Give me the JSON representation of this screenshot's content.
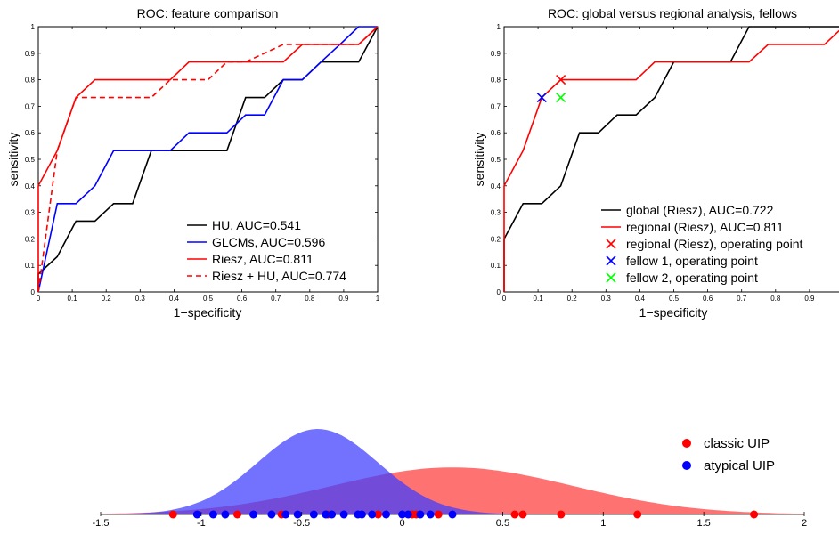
{
  "chart_data": [
    {
      "type": "line",
      "title": "ROC: feature comparison",
      "xlabel": "1−specificity",
      "ylabel": "sensitivity",
      "xlim": [
        0,
        1
      ],
      "ylim": [
        0,
        1
      ],
      "xticks": [
        "0",
        "0.1",
        "0.2",
        "0.3",
        "0.4",
        "0.5",
        "0.6",
        "0.7",
        "0.8",
        "0.9",
        "1"
      ],
      "yticks": [
        "0",
        "0.1",
        "0.2",
        "0.3",
        "0.4",
        "0.5",
        "0.6",
        "0.7",
        "0.8",
        "0.9",
        "1"
      ],
      "legend_position": "bottom-right",
      "series": [
        {
          "name": "HU, AUC=0.541",
          "color": "#000000",
          "style": "solid",
          "x": [
            0,
            0,
            0.056,
            0.111,
            0.167,
            0.222,
            0.278,
            0.333,
            0.444,
            0.556,
            0.611,
            0.667,
            0.722,
            0.778,
            0.833,
            0.889,
            0.944,
            1
          ],
          "y": [
            0,
            0.067,
            0.133,
            0.267,
            0.267,
            0.333,
            0.333,
            0.533,
            0.533,
            0.533,
            0.733,
            0.733,
            0.8,
            0.8,
            0.867,
            0.867,
            0.867,
            1
          ]
        },
        {
          "name": "GLCMs, AUC=0.596",
          "color": "#0000ff",
          "style": "solid",
          "x": [
            0,
            0.056,
            0.111,
            0.167,
            0.222,
            0.278,
            0.333,
            0.389,
            0.444,
            0.556,
            0.611,
            0.667,
            0.722,
            0.778,
            0.833,
            0.889,
            0.944,
            1
          ],
          "y": [
            0,
            0.333,
            0.333,
            0.4,
            0.533,
            0.533,
            0.533,
            0.533,
            0.6,
            0.6,
            0.667,
            0.667,
            0.8,
            0.8,
            0.867,
            0.933,
            1,
            1
          ]
        },
        {
          "name": "Riesz, AUC=0.811",
          "color": "#ff0000",
          "style": "solid",
          "x": [
            0,
            0,
            0.056,
            0.111,
            0.167,
            0.222,
            0.278,
            0.389,
            0.444,
            0.556,
            0.611,
            0.722,
            0.778,
            0.833,
            0.944,
            1
          ],
          "y": [
            0,
            0.4,
            0.533,
            0.733,
            0.8,
            0.8,
            0.8,
            0.8,
            0.867,
            0.867,
            0.867,
            0.867,
            0.933,
            0.933,
            0.933,
            1
          ]
        },
        {
          "name": "Riesz + HU, AUC=0.774",
          "color": "#ff0000",
          "style": "dashed",
          "x": [
            0,
            0.056,
            0.111,
            0.167,
            0.222,
            0.278,
            0.333,
            0.389,
            0.5,
            0.556,
            0.611,
            0.722,
            0.778,
            0.833,
            0.944,
            1
          ],
          "y": [
            0,
            0.533,
            0.733,
            0.733,
            0.733,
            0.733,
            0.733,
            0.8,
            0.8,
            0.867,
            0.867,
            0.933,
            0.933,
            0.933,
            0.933,
            1
          ]
        }
      ]
    },
    {
      "type": "line",
      "title": "ROC: global versus regional analysis, fellows",
      "xlabel": "1−specificity",
      "ylabel": "sensitivity",
      "xlim": [
        0,
        1
      ],
      "ylim": [
        0,
        1
      ],
      "xticks": [
        "0",
        "0.1",
        "0.2",
        "0.3",
        "0.4",
        "0.5",
        "0.6",
        "0.7",
        "0.8",
        "0.9"
      ],
      "yticks": [
        "0",
        "0.1",
        "0.2",
        "0.3",
        "0.4",
        "0.5",
        "0.6",
        "0.7",
        "0.8",
        "0.9",
        "1"
      ],
      "legend_position": "bottom-right",
      "series": [
        {
          "name": "global (Riesz), AUC=0.722",
          "color": "#000000",
          "style": "solid",
          "x": [
            0,
            0,
            0.056,
            0.111,
            0.167,
            0.222,
            0.278,
            0.333,
            0.389,
            0.444,
            0.5,
            0.556,
            0.611,
            0.667,
            0.722,
            0.778,
            0.833,
            1
          ],
          "y": [
            0,
            0.2,
            0.333,
            0.333,
            0.4,
            0.6,
            0.6,
            0.667,
            0.667,
            0.733,
            0.867,
            0.867,
            0.867,
            0.867,
            1,
            1,
            1,
            1
          ]
        },
        {
          "name": "regional (Riesz), AUC=0.811",
          "color": "#ff0000",
          "style": "solid",
          "x": [
            0,
            0,
            0.056,
            0.111,
            0.167,
            0.222,
            0.278,
            0.389,
            0.444,
            0.556,
            0.611,
            0.722,
            0.778,
            0.833,
            0.944,
            1
          ],
          "y": [
            0,
            0.4,
            0.533,
            0.733,
            0.8,
            0.8,
            0.8,
            0.8,
            0.867,
            0.867,
            0.867,
            0.867,
            0.933,
            0.933,
            0.933,
            1
          ]
        }
      ],
      "points": [
        {
          "name": "regional (Riesz), operating point",
          "color": "#ff0000",
          "marker": "x",
          "x": 0.167,
          "y": 0.8
        },
        {
          "name": "fellow 1, operating point",
          "color": "#0000ff",
          "marker": "x",
          "x": 0.111,
          "y": 0.733
        },
        {
          "name": "fellow 2, operating point",
          "color": "#00ff00",
          "marker": "x",
          "x": 0.167,
          "y": 0.733
        }
      ]
    },
    {
      "type": "area",
      "title": "",
      "xlim": [
        -1.5,
        2
      ],
      "xticks": [
        "-1.5",
        "-1",
        "-0.5",
        "0",
        "0.5",
        "1",
        "1.5",
        "2"
      ],
      "legend_position": "top-right",
      "series": [
        {
          "name": "classic UIP",
          "color": "#ff0000",
          "mean": 0.25,
          "sd": 0.6,
          "peak": 0.55,
          "points": [
            -1.14,
            -0.82,
            -0.6,
            -0.37,
            -0.12,
            0.05,
            0.07,
            0.18,
            0.56,
            0.6,
            0.79,
            1.17,
            1.75
          ]
        },
        {
          "name": "atypical UIP",
          "color": "#0000ff",
          "mean": -0.42,
          "sd": 0.3,
          "peak": 1.0,
          "points": [
            -1.02,
            -0.94,
            -0.88,
            -0.74,
            -0.65,
            -0.58,
            -0.52,
            -0.44,
            -0.38,
            -0.35,
            -0.29,
            -0.22,
            -0.2,
            -0.15,
            -0.08,
            0,
            0.03,
            0.09,
            0.14,
            0.25
          ]
        }
      ]
    }
  ]
}
